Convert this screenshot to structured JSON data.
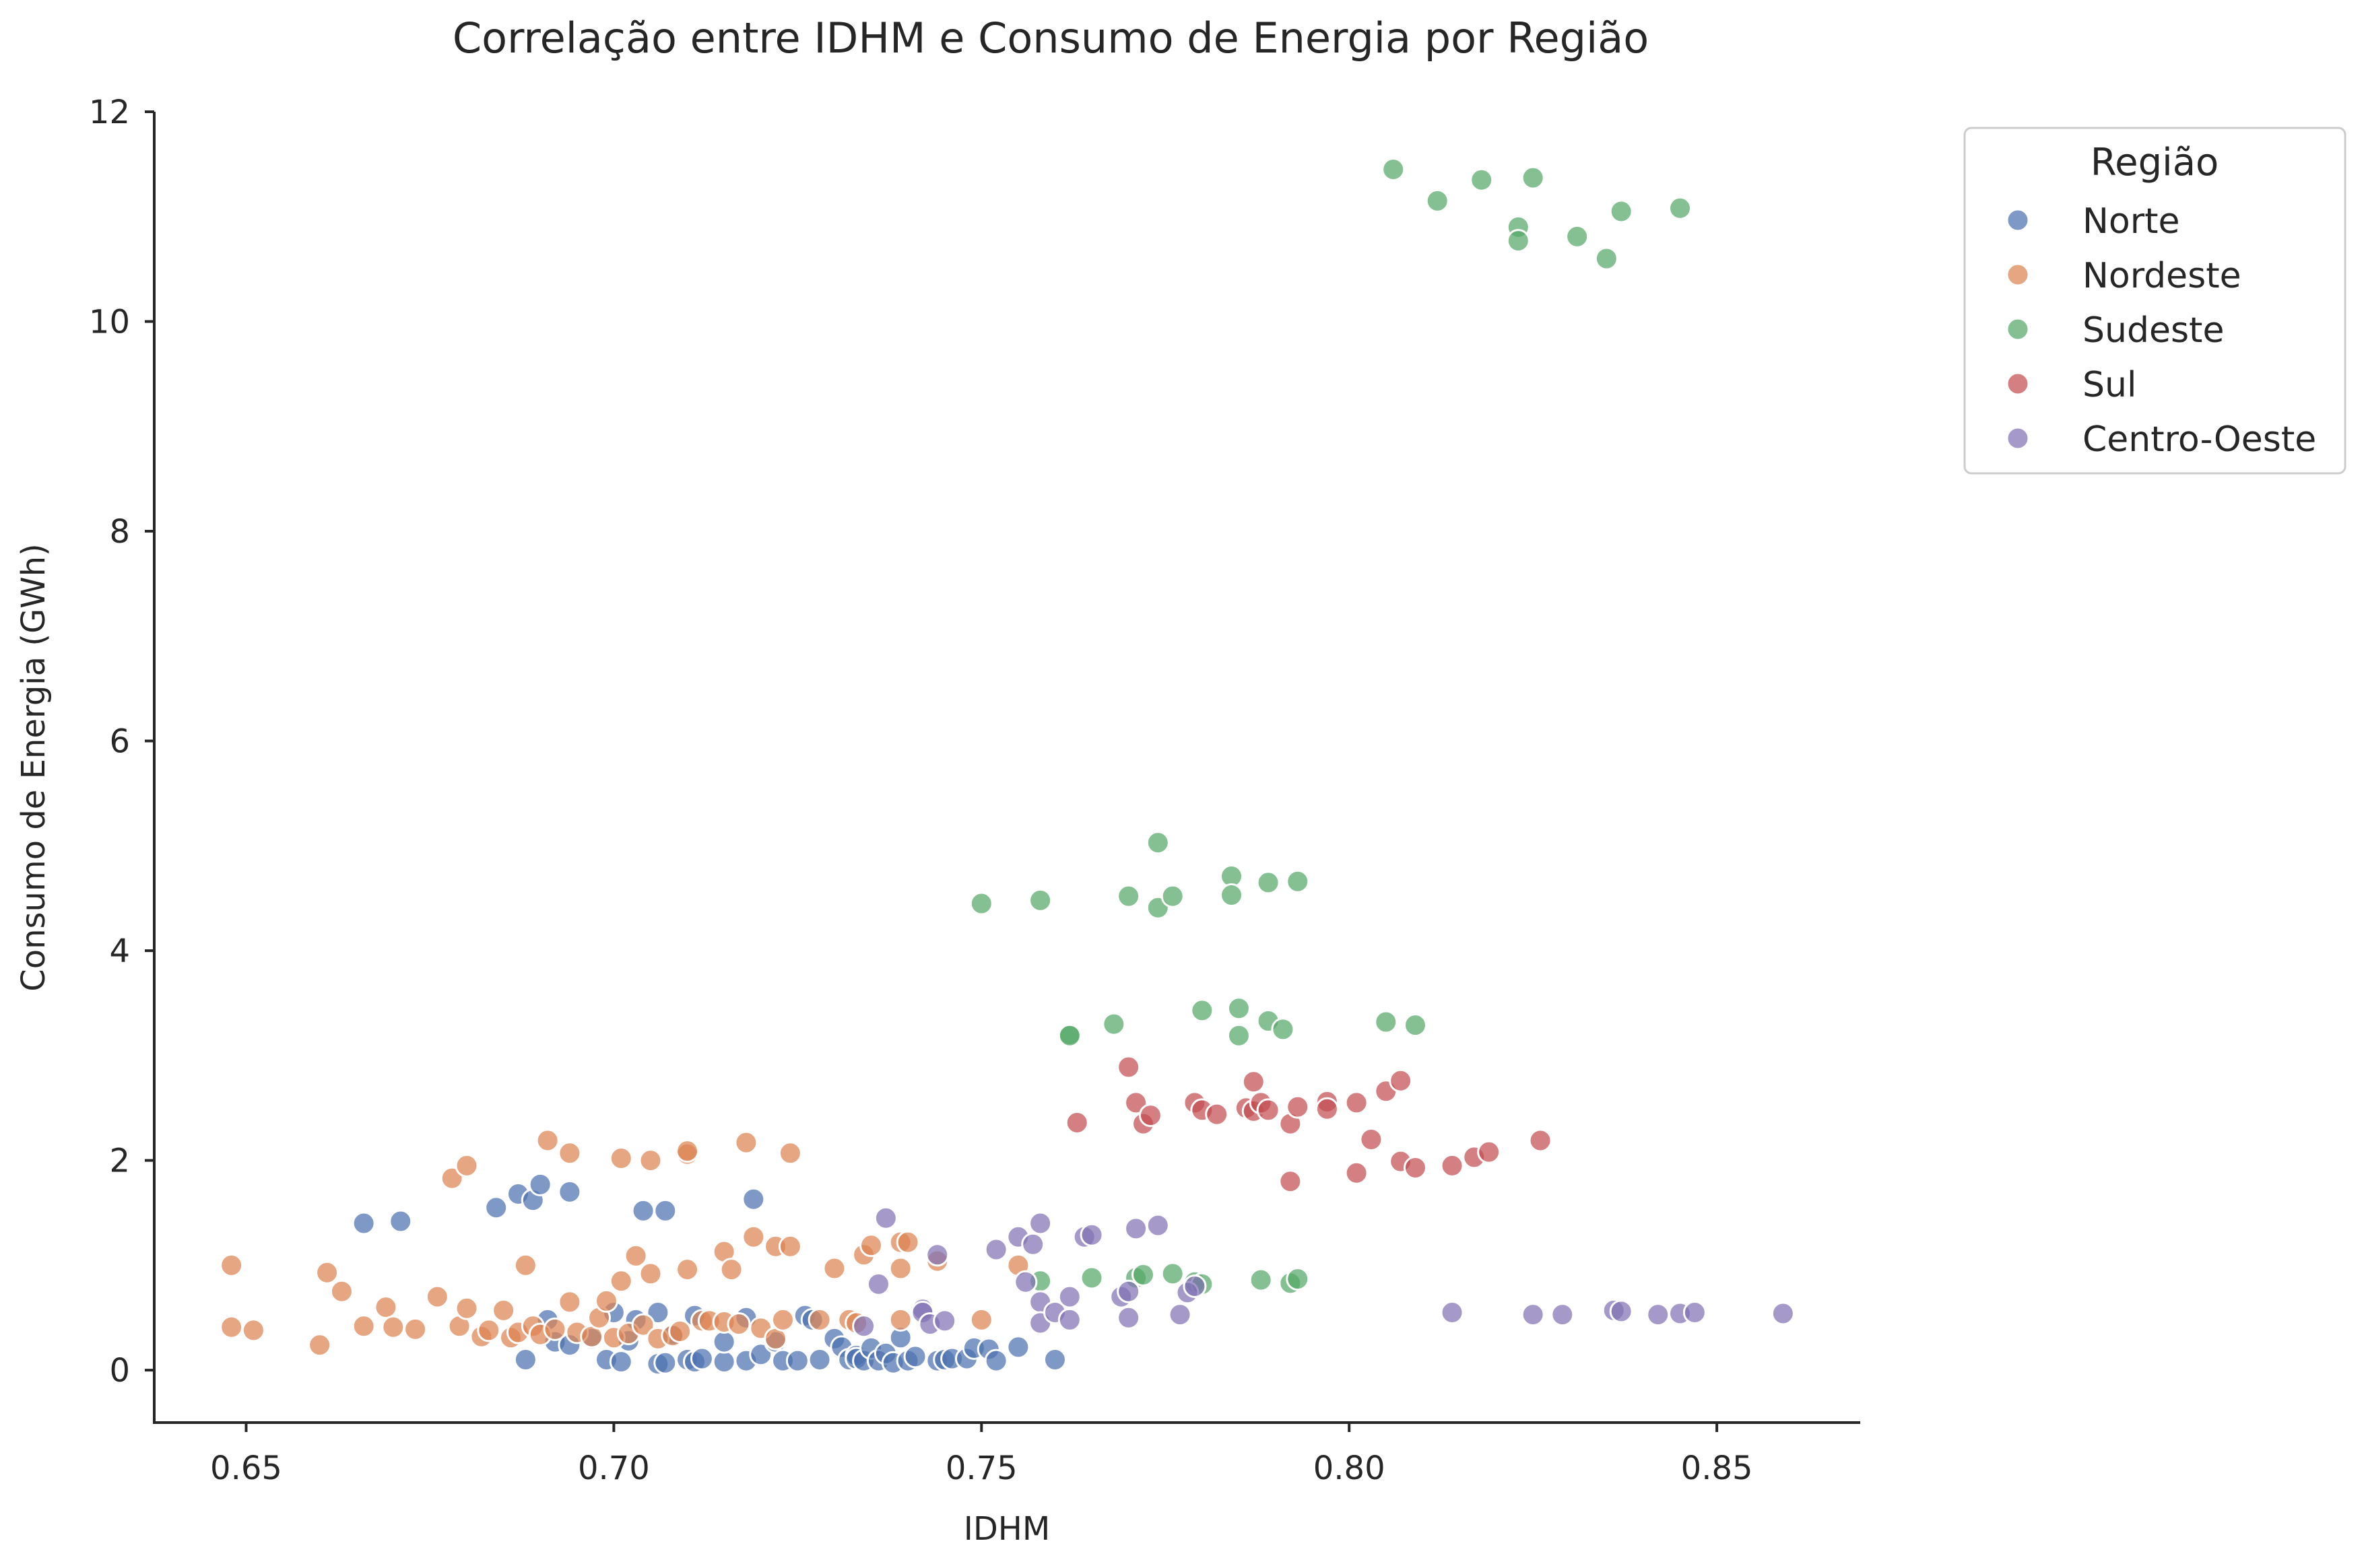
{
  "chart_data": {
    "type": "scatter",
    "title": "Correlação entre IDHM e Consumo de Energia por Região",
    "xlabel": "IDHM",
    "ylabel": "Consumo de Energia (GWh)",
    "xlim": [
      0.6375,
      0.8695
    ],
    "ylim": [
      -0.5,
      12.0
    ],
    "xticks": [
      0.65,
      0.7,
      0.75,
      0.8,
      0.85
    ],
    "xtick_labels": [
      "0.65",
      "0.70",
      "0.75",
      "0.80",
      "0.85"
    ],
    "yticks": [
      0,
      2,
      4,
      6,
      8,
      10,
      12
    ],
    "ytick_labels": [
      "0",
      "2",
      "4",
      "6",
      "8",
      "10",
      "12"
    ],
    "grid": false,
    "legend": {
      "title": "Região",
      "placement": "outside-top-right"
    },
    "series": [
      {
        "name": "Norte",
        "color": "#4c72b0",
        "points": [
          [
            0.666,
            1.4
          ],
          [
            0.671,
            1.42
          ],
          [
            0.684,
            1.55
          ],
          [
            0.687,
            1.68
          ],
          [
            0.689,
            1.62
          ],
          [
            0.69,
            1.77
          ],
          [
            0.694,
            1.7
          ],
          [
            0.704,
            1.52
          ],
          [
            0.707,
            1.52
          ],
          [
            0.719,
            1.63
          ],
          [
            0.688,
            0.1
          ],
          [
            0.691,
            0.48
          ],
          [
            0.692,
            0.27
          ],
          [
            0.694,
            0.24
          ],
          [
            0.697,
            0.3
          ],
          [
            0.699,
            0.1
          ],
          [
            0.7,
            0.55
          ],
          [
            0.701,
            0.08
          ],
          [
            0.702,
            0.28
          ],
          [
            0.703,
            0.48
          ],
          [
            0.706,
            0.06
          ],
          [
            0.706,
            0.55
          ],
          [
            0.707,
            0.07
          ],
          [
            0.708,
            0.34
          ],
          [
            0.71,
            0.1
          ],
          [
            0.711,
            0.52
          ],
          [
            0.711,
            0.08
          ],
          [
            0.712,
            0.11
          ],
          [
            0.715,
            0.08
          ],
          [
            0.715,
            0.27
          ],
          [
            0.718,
            0.5
          ],
          [
            0.718,
            0.09
          ],
          [
            0.72,
            0.15
          ],
          [
            0.722,
            0.27
          ],
          [
            0.723,
            0.09
          ],
          [
            0.725,
            0.09
          ],
          [
            0.726,
            0.52
          ],
          [
            0.727,
            0.48
          ],
          [
            0.728,
            0.1
          ],
          [
            0.73,
            0.3
          ],
          [
            0.731,
            0.22
          ],
          [
            0.732,
            0.1
          ],
          [
            0.733,
            0.14
          ],
          [
            0.733,
            0.11
          ],
          [
            0.734,
            0.09
          ],
          [
            0.735,
            0.21
          ],
          [
            0.736,
            0.09
          ],
          [
            0.737,
            0.16
          ],
          [
            0.738,
            0.07
          ],
          [
            0.739,
            0.31
          ],
          [
            0.74,
            0.09
          ],
          [
            0.741,
            0.13
          ],
          [
            0.744,
            0.09
          ],
          [
            0.745,
            0.1
          ],
          [
            0.746,
            0.11
          ],
          [
            0.748,
            0.11
          ],
          [
            0.749,
            0.21
          ],
          [
            0.751,
            0.2
          ],
          [
            0.752,
            0.09
          ],
          [
            0.755,
            0.22
          ],
          [
            0.76,
            0.1
          ]
        ]
      },
      {
        "name": "Nordeste",
        "color": "#dd8452",
        "points": [
          [
            0.648,
            1.0
          ],
          [
            0.648,
            0.41
          ],
          [
            0.651,
            0.38
          ],
          [
            0.66,
            0.24
          ],
          [
            0.661,
            0.93
          ],
          [
            0.663,
            0.75
          ],
          [
            0.666,
            0.42
          ],
          [
            0.669,
            0.6
          ],
          [
            0.67,
            0.41
          ],
          [
            0.673,
            0.39
          ],
          [
            0.676,
            0.7
          ],
          [
            0.678,
            1.83
          ],
          [
            0.679,
            0.42
          ],
          [
            0.68,
            1.95
          ],
          [
            0.68,
            0.59
          ],
          [
            0.682,
            0.32
          ],
          [
            0.683,
            0.38
          ],
          [
            0.685,
            0.57
          ],
          [
            0.686,
            0.31
          ],
          [
            0.687,
            0.36
          ],
          [
            0.688,
            1.0
          ],
          [
            0.689,
            0.42
          ],
          [
            0.69,
            0.34
          ],
          [
            0.691,
            2.19
          ],
          [
            0.692,
            0.39
          ],
          [
            0.694,
            0.65
          ],
          [
            0.694,
            2.07
          ],
          [
            0.695,
            0.36
          ],
          [
            0.697,
            0.32
          ],
          [
            0.698,
            0.5
          ],
          [
            0.699,
            0.66
          ],
          [
            0.7,
            0.31
          ],
          [
            0.701,
            2.02
          ],
          [
            0.701,
            0.85
          ],
          [
            0.702,
            0.35
          ],
          [
            0.703,
            1.09
          ],
          [
            0.704,
            0.43
          ],
          [
            0.705,
            0.92
          ],
          [
            0.705,
            2.0
          ],
          [
            0.706,
            0.3
          ],
          [
            0.708,
            0.33
          ],
          [
            0.709,
            0.37
          ],
          [
            0.71,
            2.06
          ],
          [
            0.71,
            2.09
          ],
          [
            0.71,
            0.96
          ],
          [
            0.712,
            0.47
          ],
          [
            0.713,
            0.47
          ],
          [
            0.715,
            1.13
          ],
          [
            0.715,
            0.46
          ],
          [
            0.716,
            0.96
          ],
          [
            0.717,
            0.44
          ],
          [
            0.718,
            2.17
          ],
          [
            0.719,
            1.27
          ],
          [
            0.72,
            0.4
          ],
          [
            0.722,
            0.3
          ],
          [
            0.722,
            1.18
          ],
          [
            0.723,
            0.48
          ],
          [
            0.724,
            2.07
          ],
          [
            0.724,
            1.18
          ],
          [
            0.728,
            0.48
          ],
          [
            0.73,
            0.97
          ],
          [
            0.732,
            0.48
          ],
          [
            0.733,
            0.45
          ],
          [
            0.734,
            1.1
          ],
          [
            0.735,
            1.19
          ],
          [
            0.739,
            1.22
          ],
          [
            0.739,
            0.97
          ],
          [
            0.739,
            0.48
          ],
          [
            0.74,
            1.22
          ],
          [
            0.744,
            1.04
          ],
          [
            0.75,
            0.48
          ],
          [
            0.755,
            1.0
          ]
        ]
      },
      {
        "name": "Sudeste",
        "color": "#55a868",
        "points": [
          [
            0.806,
            11.45
          ],
          [
            0.812,
            11.15
          ],
          [
            0.818,
            11.35
          ],
          [
            0.823,
            10.9
          ],
          [
            0.823,
            10.77
          ],
          [
            0.825,
            11.37
          ],
          [
            0.831,
            10.81
          ],
          [
            0.835,
            10.6
          ],
          [
            0.837,
            11.05
          ],
          [
            0.845,
            11.08
          ],
          [
            0.75,
            4.45
          ],
          [
            0.758,
            4.48
          ],
          [
            0.77,
            4.52
          ],
          [
            0.774,
            5.03
          ],
          [
            0.774,
            4.41
          ],
          [
            0.776,
            4.52
          ],
          [
            0.784,
            4.71
          ],
          [
            0.784,
            4.53
          ],
          [
            0.789,
            4.65
          ],
          [
            0.793,
            4.66
          ],
          [
            0.762,
            3.2
          ],
          [
            0.762,
            3.19
          ],
          [
            0.768,
            3.3
          ],
          [
            0.78,
            3.43
          ],
          [
            0.785,
            3.45
          ],
          [
            0.785,
            3.19
          ],
          [
            0.789,
            3.33
          ],
          [
            0.791,
            3.25
          ],
          [
            0.805,
            3.32
          ],
          [
            0.809,
            3.29
          ],
          [
            0.758,
            0.85
          ],
          [
            0.765,
            0.88
          ],
          [
            0.771,
            0.88
          ],
          [
            0.772,
            0.91
          ],
          [
            0.776,
            0.92
          ],
          [
            0.779,
            0.84
          ],
          [
            0.78,
            0.82
          ],
          [
            0.788,
            0.86
          ],
          [
            0.792,
            0.83
          ],
          [
            0.793,
            0.87
          ]
        ]
      },
      {
        "name": "Sul",
        "color": "#c44e52",
        "points": [
          [
            0.763,
            2.36
          ],
          [
            0.77,
            2.89
          ],
          [
            0.771,
            2.55
          ],
          [
            0.772,
            2.35
          ],
          [
            0.773,
            2.43
          ],
          [
            0.779,
            2.55
          ],
          [
            0.78,
            2.48
          ],
          [
            0.782,
            2.44
          ],
          [
            0.786,
            2.5
          ],
          [
            0.787,
            2.75
          ],
          [
            0.787,
            2.47
          ],
          [
            0.788,
            2.55
          ],
          [
            0.789,
            2.48
          ],
          [
            0.792,
            2.35
          ],
          [
            0.792,
            1.8
          ],
          [
            0.793,
            2.51
          ],
          [
            0.797,
            2.56
          ],
          [
            0.797,
            2.49
          ],
          [
            0.801,
            2.55
          ],
          [
            0.801,
            1.88
          ],
          [
            0.803,
            2.2
          ],
          [
            0.805,
            2.66
          ],
          [
            0.807,
            2.76
          ],
          [
            0.807,
            1.99
          ],
          [
            0.809,
            1.93
          ],
          [
            0.814,
            1.95
          ],
          [
            0.817,
            2.03
          ],
          [
            0.819,
            2.08
          ],
          [
            0.826,
            2.19
          ]
        ]
      },
      {
        "name": "Centro-Oeste",
        "color": "#8172b3",
        "points": [
          [
            0.734,
            0.42
          ],
          [
            0.736,
            0.82
          ],
          [
            0.737,
            1.45
          ],
          [
            0.742,
            0.58
          ],
          [
            0.742,
            0.55
          ],
          [
            0.743,
            0.44
          ],
          [
            0.744,
            1.1
          ],
          [
            0.745,
            0.47
          ],
          [
            0.752,
            1.15
          ],
          [
            0.755,
            1.27
          ],
          [
            0.756,
            0.84
          ],
          [
            0.757,
            1.2
          ],
          [
            0.758,
            1.4
          ],
          [
            0.758,
            0.65
          ],
          [
            0.758,
            0.45
          ],
          [
            0.76,
            0.55
          ],
          [
            0.762,
            0.7
          ],
          [
            0.762,
            0.48
          ],
          [
            0.764,
            1.27
          ],
          [
            0.765,
            1.29
          ],
          [
            0.769,
            0.7
          ],
          [
            0.77,
            0.75
          ],
          [
            0.77,
            0.5
          ],
          [
            0.771,
            1.35
          ],
          [
            0.774,
            1.38
          ],
          [
            0.777,
            0.53
          ],
          [
            0.778,
            0.74
          ],
          [
            0.779,
            0.8
          ],
          [
            0.814,
            0.55
          ],
          [
            0.825,
            0.53
          ],
          [
            0.829,
            0.53
          ],
          [
            0.836,
            0.57
          ],
          [
            0.837,
            0.56
          ],
          [
            0.842,
            0.53
          ],
          [
            0.845,
            0.54
          ],
          [
            0.847,
            0.55
          ],
          [
            0.859,
            0.54
          ]
        ]
      }
    ]
  }
}
